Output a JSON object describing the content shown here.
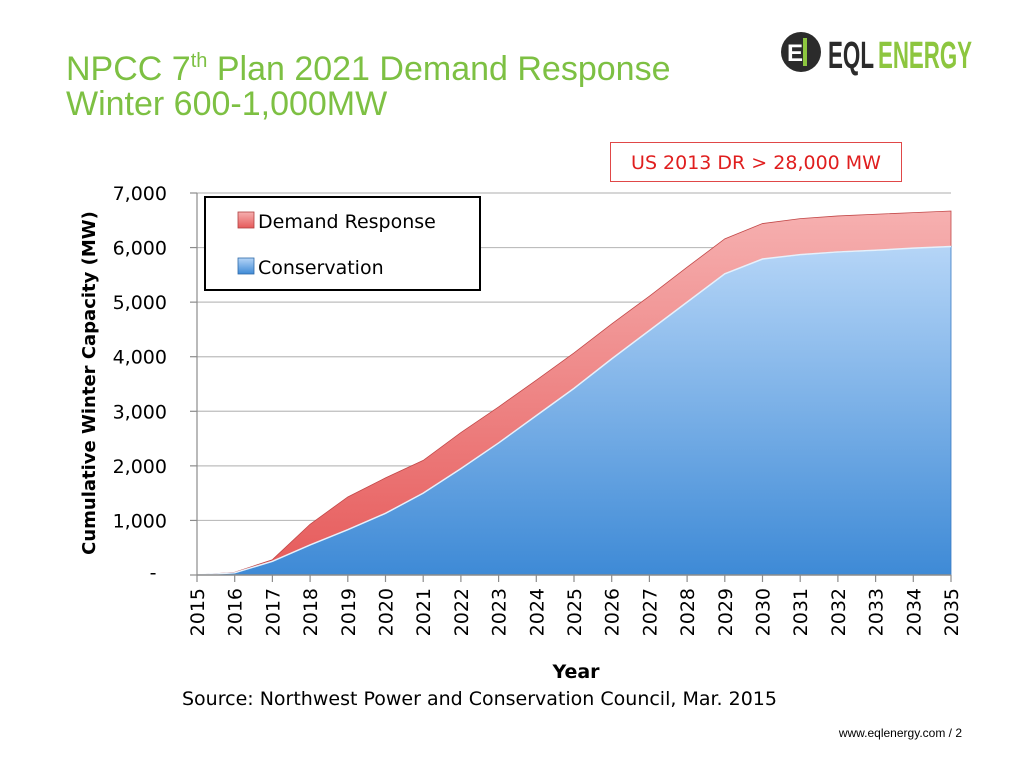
{
  "slide": {
    "title_line1_pre": "NPCC 7",
    "title_sup": "th",
    "title_line1_post": " Plan 2021  Demand Response",
    "title_line2": "Winter 600-1,000MW",
    "callout": "US  2013 DR > 28,000 MW",
    "source": "Source: Northwest Power and Conservation Council, Mar. 2015",
    "footer": "www.eqlenergy.com / 2"
  },
  "logo": {
    "mark": "E",
    "text_dark": "EQL",
    "text_green": "ENERGY"
  },
  "colors": {
    "title": "#7dc043",
    "conservation": "#5a9fdc",
    "demand_response": "#f07a7a",
    "callout": "#e01e1e",
    "logo_green": "#8dc63f",
    "logo_dark": "#2b2b2b"
  },
  "chart_data": {
    "type": "area",
    "stacked": true,
    "categories": [
      "2015",
      "2016",
      "2017",
      "2018",
      "2019",
      "2020",
      "2021",
      "2022",
      "2023",
      "2024",
      "2025",
      "2026",
      "2027",
      "2028",
      "2029",
      "2030",
      "2031",
      "2032",
      "2033",
      "2034",
      "2035"
    ],
    "series": [
      {
        "name": "Conservation",
        "values": [
          0,
          40,
          250,
          550,
          830,
          1130,
          1500,
          1950,
          2420,
          2920,
          3420,
          3960,
          4480,
          5000,
          5520,
          5790,
          5870,
          5920,
          5950,
          5990,
          6020
        ]
      },
      {
        "name": "Demand Response",
        "values": [
          0,
          10,
          30,
          380,
          600,
          650,
          600,
          660,
          660,
          650,
          650,
          640,
          630,
          640,
          640,
          650,
          660,
          660,
          660,
          650,
          650
        ]
      }
    ],
    "legend": [
      "Demand Response",
      "Conservation"
    ],
    "legend_position": "top-left",
    "ylabel": "Cumulative  Winter Capacity (MW)",
    "xlabel": "Year",
    "ylim": [
      0,
      7000
    ],
    "yticks": [
      {
        "value": 0,
        "label": "-"
      },
      {
        "value": 1000,
        "label": "1,000"
      },
      {
        "value": 2000,
        "label": "2,000"
      },
      {
        "value": 3000,
        "label": "3,000"
      },
      {
        "value": 4000,
        "label": "4,000"
      },
      {
        "value": 5000,
        "label": "5,000"
      },
      {
        "value": 6000,
        "label": "6,000"
      },
      {
        "value": 7000,
        "label": "7,000"
      }
    ],
    "grid": true
  }
}
